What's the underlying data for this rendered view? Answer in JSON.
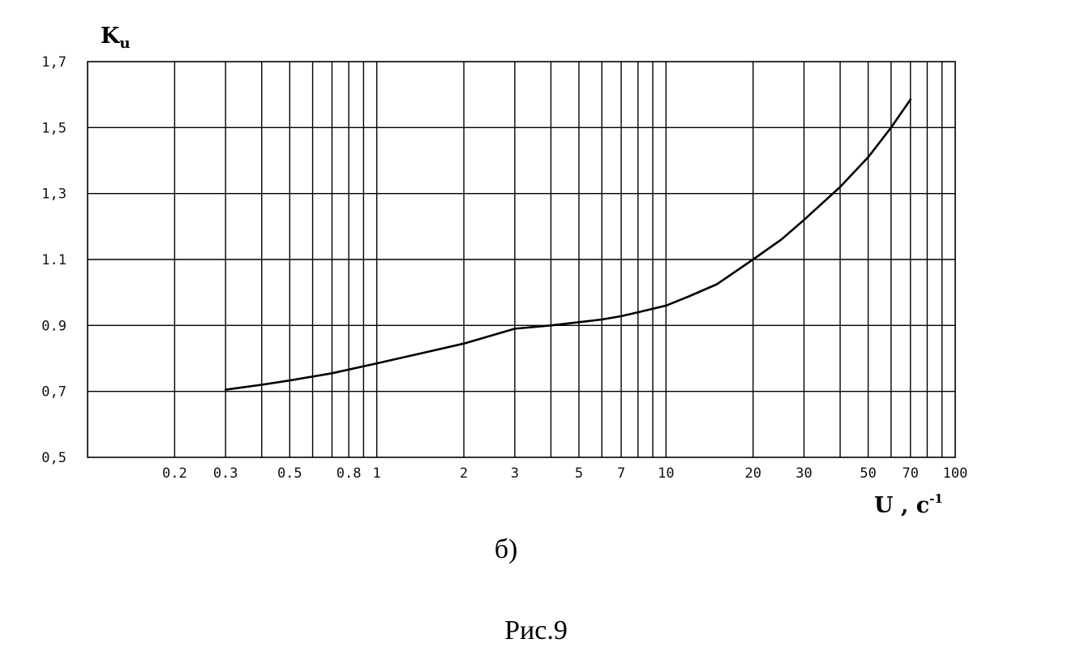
{
  "chart_data": {
    "type": "line",
    "xscale": "log",
    "yscale": "linear",
    "xlim": [
      0.1,
      100
    ],
    "ylim": [
      0.5,
      1.7
    ],
    "grid": true,
    "xticks": [
      "0.2",
      "0.3",
      "0.5",
      "0.8",
      "1",
      "2",
      "3",
      "5",
      "7",
      "10",
      "20",
      "30",
      "50",
      "70",
      "100"
    ],
    "xtick_values": [
      0.2,
      0.3,
      0.5,
      0.8,
      1,
      2,
      3,
      5,
      7,
      10,
      20,
      30,
      50,
      70,
      100
    ],
    "yticks": [
      "0,5",
      "0,7",
      "0.9",
      "1.1",
      "1,3",
      "1,5",
      "1,7"
    ],
    "ytick_values": [
      0.5,
      0.7,
      0.9,
      1.1,
      1.3,
      1.5,
      1.7
    ],
    "ylabel": "K",
    "ylabel_sub": "u",
    "xlabel": "U , c",
    "xlabel_sup": "-1",
    "series": [
      {
        "x": [
          0.3,
          0.4,
          0.5,
          0.7,
          1,
          1.5,
          2,
          3,
          4,
          5,
          6,
          7,
          8,
          10,
          12,
          15,
          20,
          25,
          30,
          40,
          50,
          60,
          70
        ],
        "y": [
          0.705,
          0.72,
          0.733,
          0.755,
          0.785,
          0.82,
          0.845,
          0.89,
          0.9,
          0.91,
          0.918,
          0.928,
          0.94,
          0.96,
          0.988,
          1.025,
          1.1,
          1.16,
          1.22,
          1.32,
          1.41,
          1.5,
          1.585
        ]
      }
    ]
  },
  "caption_sub": "б)",
  "caption_fig": "Рис.9"
}
